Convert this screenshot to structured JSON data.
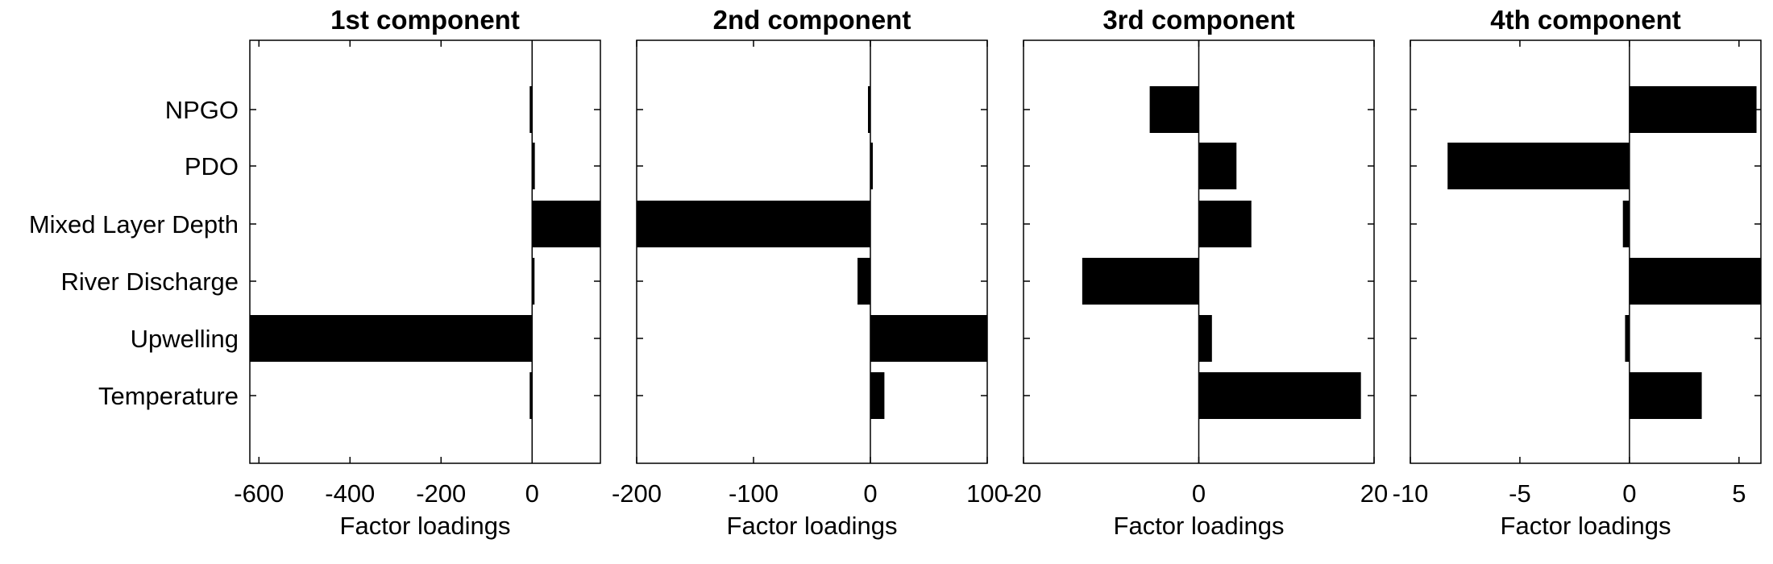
{
  "chart_data": {
    "type": "bar",
    "orientation": "horizontal",
    "grid": false,
    "categories": [
      "NPGO",
      "PDO",
      "Mixed Layer Depth",
      "River Discharge",
      "Upwelling",
      "Temperature"
    ],
    "panels": [
      {
        "title": "1st component",
        "xlabel": "Factor loadings",
        "xlim": [
          -620,
          150
        ],
        "xticks": [
          "-600",
          "-400",
          "-200",
          "0"
        ],
        "xtick_values": [
          -600,
          -400,
          -200,
          0
        ],
        "values": [
          -3,
          6,
          150,
          0,
          -620,
          -3
        ]
      },
      {
        "title": "2nd component",
        "xlabel": "Factor loadings",
        "xlim": [
          -200,
          100
        ],
        "xticks": [
          "-200",
          "-100",
          "0",
          "100"
        ],
        "xtick_values": [
          -200,
          -100,
          0,
          100
        ],
        "values": [
          -1,
          1,
          -200,
          -11,
          100,
          12
        ]
      },
      {
        "title": "3rd component",
        "xlabel": "Factor loadings",
        "xlim": [
          -20,
          20
        ],
        "xticks": [
          "-20",
          "0",
          "20"
        ],
        "xtick_values": [
          -20,
          0,
          20
        ],
        "values": [
          -5.6,
          4.3,
          6.0,
          -13.3,
          1.5,
          18.5
        ]
      },
      {
        "title": "4th component",
        "xlabel": "Factor loadings",
        "xlim": [
          -10,
          6
        ],
        "xticks": [
          "-10",
          "-5",
          "0",
          "5"
        ],
        "xtick_values": [
          -10,
          -5,
          0,
          5
        ],
        "values": [
          5.8,
          -8.3,
          -0.3,
          6.0,
          -0.2,
          3.3
        ]
      }
    ]
  }
}
